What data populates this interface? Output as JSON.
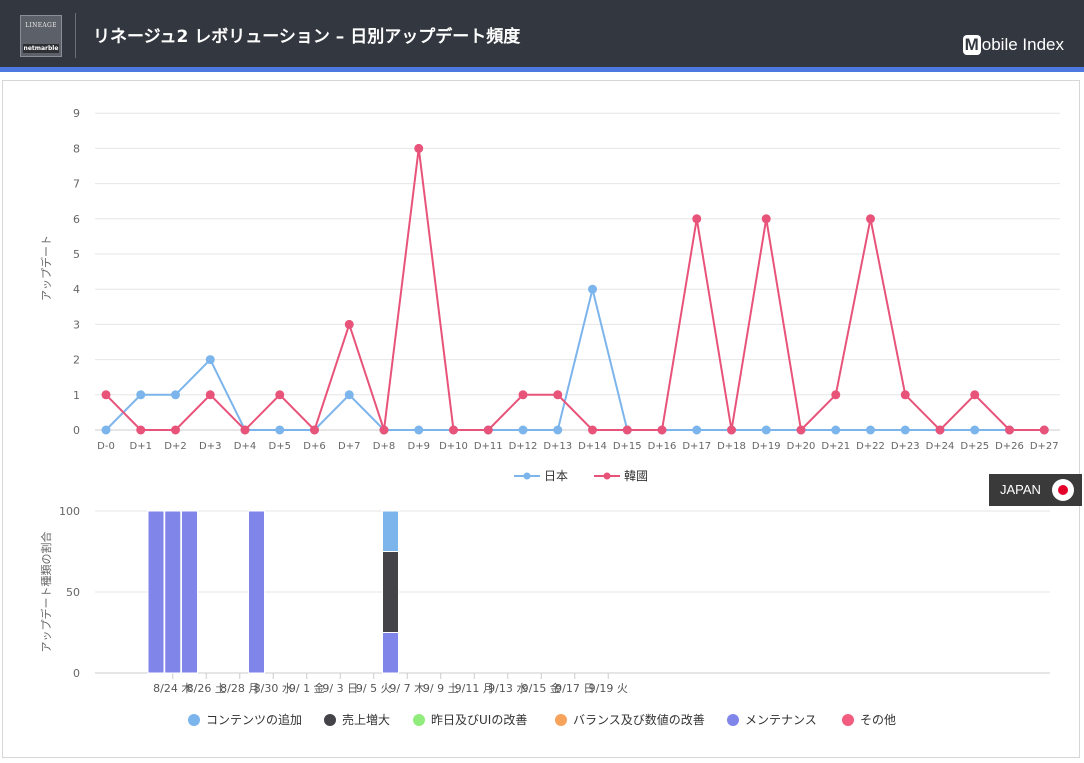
{
  "header": {
    "title": "リネージュ2 レボリューション – 日別アップデート頻度",
    "brand": "Mobile Index",
    "logo_text_top": "LINEAGE",
    "logo_text_bottom": "netmarble"
  },
  "region_badge": {
    "label": "JAPAN"
  },
  "colors": {
    "header_bg": "#333840",
    "accent": "#4d79e0",
    "japan": "#7cb5ec",
    "korea": "#e8537a",
    "content_add": "#7cb5ec",
    "sales_increase": "#434348",
    "improvement": "#90ed7d",
    "balance": "#f7a35c",
    "maintenance": "#8085e9",
    "other": "#f15c80"
  },
  "chart_data": [
    {
      "type": "line",
      "ylabel": "アップデート",
      "ylim": [
        0,
        9
      ],
      "yticks": [
        "0",
        "1",
        "2",
        "3",
        "4",
        "5",
        "6",
        "7",
        "8",
        "9"
      ],
      "categories": [
        "D-0",
        "D+1",
        "D+2",
        "D+3",
        "D+4",
        "D+5",
        "D+6",
        "D+7",
        "D+8",
        "D+9",
        "D+10",
        "D+11",
        "D+12",
        "D+13",
        "D+14",
        "D+15",
        "D+16",
        "D+17",
        "D+18",
        "D+19",
        "D+20",
        "D+21",
        "D+22",
        "D+23",
        "D+24",
        "D+25",
        "D+26",
        "D+27"
      ],
      "series": [
        {
          "name": "日本",
          "color": "#7cb5ec",
          "values": [
            0,
            1,
            1,
            2,
            0,
            0,
            0,
            1,
            0,
            0,
            0,
            0,
            0,
            0,
            4,
            0,
            0,
            0,
            0,
            0,
            0,
            0,
            0,
            0,
            0,
            0,
            0,
            0
          ]
        },
        {
          "name": "韓國",
          "color": "#e8537a",
          "values": [
            1,
            0,
            0,
            1,
            0,
            1,
            0,
            3,
            0,
            8,
            0,
            0,
            1,
            1,
            0,
            0,
            0,
            6,
            0,
            6,
            0,
            1,
            6,
            1,
            0,
            1,
            0,
            0
          ]
        }
      ],
      "legend": "bottom-center",
      "grid": true
    },
    {
      "type": "bar",
      "stacked": true,
      "ylabel": "アップデート種類の割合",
      "ylim": [
        0,
        100
      ],
      "yticks": [
        "0",
        "50",
        "100"
      ],
      "xtick_labels": [
        "8/24 木",
        "8/26 土",
        "8/28 月",
        "8/30 水",
        "9/ 1 金",
        "9/ 3 日",
        "9/ 5 火",
        "9/ 7 木",
        "9/ 9 土",
        "9/11 月",
        "9/13 水",
        "9/15 金",
        "9/17 日",
        "9/19 火"
      ],
      "series_names": [
        "コンテンツの追加",
        "売上増大",
        "昨日及びUIの改善",
        "バランス及び数値の改善",
        "メンテナンス",
        "その他"
      ],
      "series_colors": [
        "#7cb5ec",
        "#434348",
        "#90ed7d",
        "#f7a35c",
        "#8085e9",
        "#f15c80"
      ],
      "bars": [
        {
          "date": "8/23",
          "values": [
            0,
            0,
            0,
            0,
            100,
            0
          ]
        },
        {
          "date": "8/24",
          "values": [
            0,
            0,
            0,
            0,
            100,
            0
          ]
        },
        {
          "date": "8/25",
          "values": [
            0,
            0,
            0,
            0,
            100,
            0
          ]
        },
        {
          "date": "8/29",
          "values": [
            0,
            0,
            0,
            0,
            100,
            0
          ]
        },
        {
          "date": "9/6",
          "values": [
            25,
            50,
            0,
            0,
            25,
            0
          ]
        }
      ],
      "legend": "bottom-center",
      "grid": true
    }
  ]
}
